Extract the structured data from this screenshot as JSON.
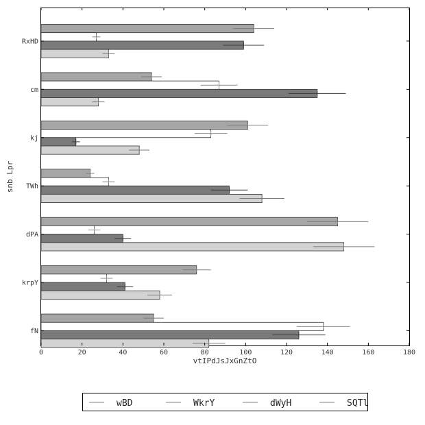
{
  "chart_data": {
    "type": "bar",
    "orientation": "horizontal",
    "title": "",
    "xlabel": "vtIPdJsJxGnZtO",
    "ylabel": "snb Lpr",
    "xlim": [
      0,
      180
    ],
    "xticks": [
      "0",
      "20",
      "40",
      "60",
      "80",
      "100",
      "120",
      "140",
      "160",
      "180"
    ],
    "categories": [
      "RxHD",
      "cm",
      "kj",
      "TWh",
      "dPA",
      "krpY",
      "fN"
    ],
    "series": [
      {
        "name": "wBD",
        "color": "#a6a6a6",
        "values": [
          104,
          54,
          101,
          24,
          145,
          76,
          55
        ],
        "errors": [
          10,
          5,
          10,
          2,
          15,
          7,
          5
        ]
      },
      {
        "name": "WkrY",
        "color": "#ffffff",
        "values": [
          27,
          87,
          83,
          33,
          26,
          32,
          138
        ],
        "errors": [
          2,
          9,
          8,
          3,
          3,
          3,
          13
        ]
      },
      {
        "name": "dWyH",
        "color": "#7a7a7a",
        "values": [
          99,
          135,
          17,
          92,
          40,
          41,
          126
        ],
        "errors": [
          10,
          14,
          2,
          9,
          4,
          4,
          13
        ]
      },
      {
        "name": "SQTl",
        "color": "#d3d3d3",
        "values": [
          33,
          28,
          48,
          108,
          148,
          58,
          82
        ],
        "errors": [
          3,
          3,
          5,
          11,
          15,
          6,
          8
        ]
      }
    ],
    "legend_position": "bottom",
    "grid": false
  }
}
